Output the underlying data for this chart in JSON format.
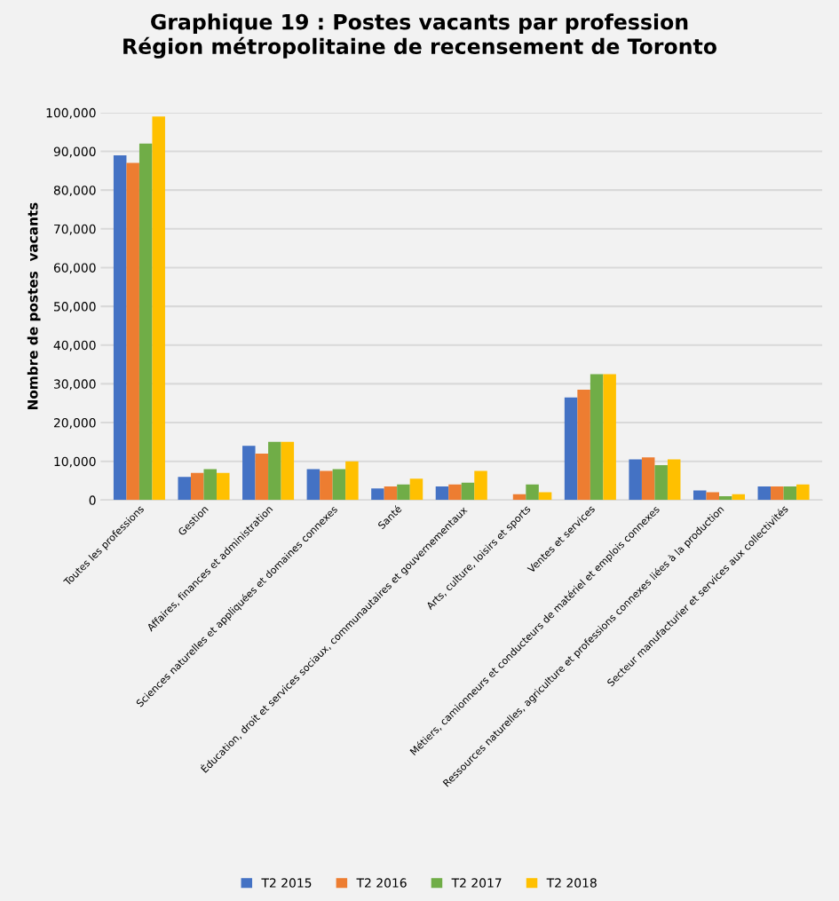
{
  "chart_data": {
    "type": "bar",
    "title": "Graphique 19 : Postes vacants par profession\nRégion métropolitaine de recensement de Toronto",
    "ylabel": "Nombre de postes  vacants",
    "categories": [
      "Toutes les professions",
      "Gestion",
      "Affaires, finances et administration",
      "Sciences naturelles et appliquées et domaines connexes",
      "Santé",
      "Éducation, droit et services sociaux, communautaires et gouvernementaux",
      "Arts, culture, loisirs et sports",
      "Ventes et services",
      "Métiers, camionneurs et conducteurs de matériel et emplois connexes",
      "Ressources naturelles, agriculture et professions connexes liées à la production",
      "Secteur manufacturier et services aux collectivités"
    ],
    "series": [
      {
        "name": "T2 2015",
        "color": "#4472c4",
        "values": [
          89000,
          6000,
          14000,
          8000,
          3000,
          3500,
          null,
          26500,
          10500,
          2500,
          3500
        ]
      },
      {
        "name": "T2 2016",
        "color": "#ed7d31",
        "values": [
          87000,
          7000,
          12000,
          7500,
          3500,
          4000,
          1500,
          28500,
          11000,
          2000,
          3500
        ]
      },
      {
        "name": "T2 2017",
        "color": "#70ad47",
        "values": [
          92000,
          8000,
          15000,
          8000,
          4000,
          4500,
          4000,
          32500,
          9000,
          1000,
          3500
        ]
      },
      {
        "name": "T2 2018",
        "color": "#ffc000",
        "values": [
          99000,
          7000,
          15000,
          10000,
          5500,
          7500,
          2000,
          32500,
          10500,
          1500,
          4000
        ]
      }
    ],
    "ylim": [
      0,
      100000
    ],
    "yticks": [
      {
        "value": 0,
        "label": "0"
      },
      {
        "value": 10000,
        "label": "10,000"
      },
      {
        "value": 20000,
        "label": "20,000"
      },
      {
        "value": 30000,
        "label": "30,000"
      },
      {
        "value": 40000,
        "label": "40,000"
      },
      {
        "value": 50000,
        "label": "50,000"
      },
      {
        "value": 60000,
        "label": "60,000"
      },
      {
        "value": 70000,
        "label": "70,000"
      },
      {
        "value": 80000,
        "label": "80,000"
      },
      {
        "value": 90000,
        "label": "90,000"
      },
      {
        "value": 100000,
        "label": "100,000"
      }
    ],
    "grid": "y",
    "legend": "bottom"
  }
}
